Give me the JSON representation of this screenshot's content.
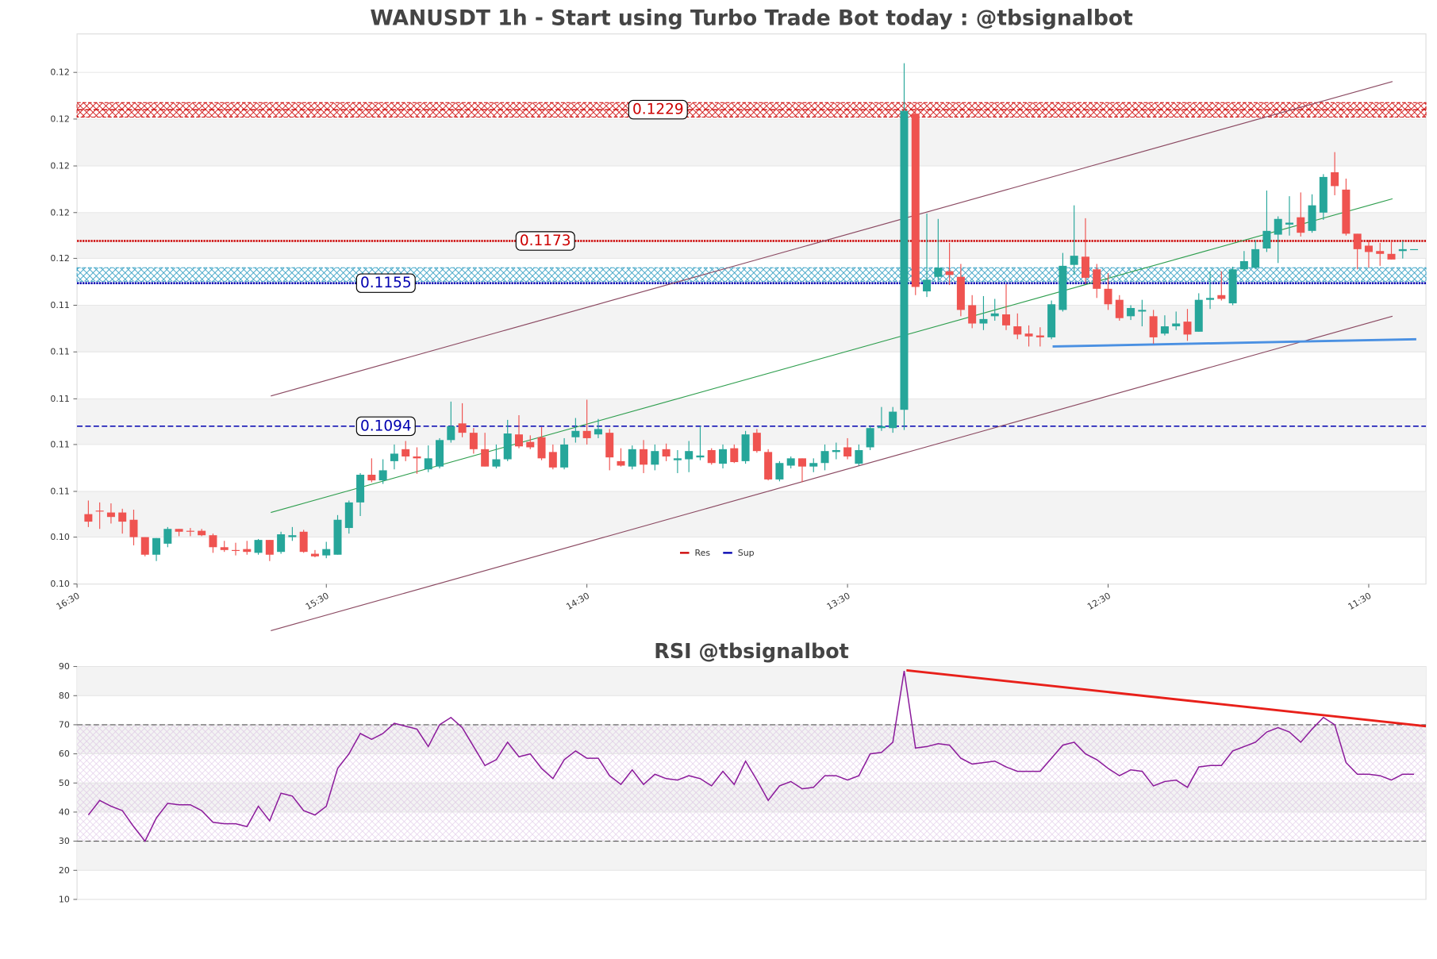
{
  "chart_data": [
    {
      "type": "candlestick",
      "title": "WANUSDT 1h - Start using Turbo Trade Bot today : @tbsignalbot",
      "up_color": "#26a69a",
      "down_color": "#ef5350",
      "open": [
        0.10565,
        0.1058,
        0.10572,
        0.10572,
        0.10541,
        0.10467,
        0.10392,
        0.10439,
        0.10502,
        0.10494,
        0.10494,
        0.10475,
        0.10424,
        0.10412,
        0.10416,
        0.104,
        0.10455,
        0.10404,
        0.10467,
        0.1049,
        0.10396,
        0.10389,
        0.10392,
        0.10506,
        0.10615,
        0.10733,
        0.10709,
        0.10791,
        0.10842,
        0.10811,
        0.10756,
        0.10768,
        0.10881,
        0.10952,
        0.10912,
        0.10842,
        0.10768,
        0.10799,
        0.10905,
        0.10873,
        0.10893,
        0.1083,
        0.10764,
        0.10893,
        0.1092,
        0.10905,
        0.10912,
        0.10791,
        0.10768,
        0.10842,
        0.10776,
        0.10842,
        0.10795,
        0.10799,
        0.10807,
        0.10838,
        0.1078,
        0.10846,
        0.10791,
        0.10912,
        0.1083,
        0.10713,
        0.10772,
        0.10803,
        0.10768,
        0.10783,
        0.1083,
        0.1085,
        0.1078,
        0.1085,
        0.10932,
        0.10932,
        0.1101,
        0.12273,
        0.11515,
        0.11577,
        0.11601,
        0.11577,
        0.11456,
        0.11378,
        0.11409,
        0.11417,
        0.11366,
        0.11335,
        0.11327,
        0.11319,
        0.11436,
        0.11628,
        0.11663,
        0.11609,
        0.11526,
        0.11479,
        0.11409,
        0.11429,
        0.11409,
        0.11335,
        0.11366,
        0.11386,
        0.11343,
        0.11479,
        0.11499,
        0.11464,
        0.11609,
        0.11616,
        0.11698,
        0.11757,
        0.118,
        0.11831,
        0.11773,
        0.11851,
        0.12023,
        0.11949,
        0.11761,
        0.1171,
        0.11687,
        0.11675,
        0.11687,
        0.11695
      ],
      "high": [
        0.10623,
        0.10615,
        0.10611,
        0.10588,
        0.10584,
        0.10467,
        0.10463,
        0.1051,
        0.10502,
        0.10506,
        0.10502,
        0.10482,
        0.10451,
        0.10443,
        0.10451,
        0.10459,
        0.10455,
        0.1049,
        0.1051,
        0.10498,
        0.10412,
        0.10447,
        0.10561,
        0.10623,
        0.1074,
        0.10803,
        0.10799,
        0.10862,
        0.10877,
        0.1085,
        0.10858,
        0.10889,
        0.11045,
        0.11038,
        0.10932,
        0.10912,
        0.10862,
        0.10967,
        0.10987,
        0.10901,
        0.10936,
        0.10862,
        0.10889,
        0.10975,
        0.11053,
        0.10971,
        0.10928,
        0.10846,
        0.10858,
        0.10881,
        0.10862,
        0.10866,
        0.10838,
        0.10877,
        0.1094,
        0.10846,
        0.10862,
        0.10862,
        0.1092,
        0.10928,
        0.10842,
        0.10791,
        0.10811,
        0.10803,
        0.10803,
        0.10862,
        0.1087,
        0.10889,
        0.10862,
        0.1094,
        0.11022,
        0.11022,
        0.12488,
        0.12312,
        0.11847,
        0.11824,
        0.11722,
        0.11632,
        0.11499,
        0.11495,
        0.11483,
        0.11546,
        0.11421,
        0.1137,
        0.11362,
        0.11476,
        0.11679,
        0.11882,
        0.11827,
        0.11632,
        0.11593,
        0.11499,
        0.11456,
        0.11479,
        0.11436,
        0.11413,
        0.11429,
        0.1144,
        0.11507,
        0.11601,
        0.11601,
        0.1162,
        0.11687,
        0.11734,
        0.11945,
        0.11835,
        0.11921,
        0.11937,
        0.11929,
        0.12015,
        0.12109,
        0.11996,
        0.11761,
        0.11734,
        0.11722,
        0.1173,
        0.1173,
        0.11695
      ],
      "low": [
        0.1051,
        0.10502,
        0.10525,
        0.10482,
        0.10432,
        0.10385,
        0.10365,
        0.10424,
        0.10471,
        0.10471,
        0.10471,
        0.104,
        0.10404,
        0.10389,
        0.10392,
        0.10392,
        0.10365,
        0.10396,
        0.10451,
        0.104,
        0.10381,
        0.10377,
        0.10392,
        0.10482,
        0.10557,
        0.10701,
        0.10694,
        0.10756,
        0.10791,
        0.10737,
        0.10744,
        0.1076,
        0.1087,
        0.10893,
        0.10823,
        0.10768,
        0.1076,
        0.10791,
        0.10846,
        0.10842,
        0.10795,
        0.10756,
        0.10756,
        0.1087,
        0.10862,
        0.10889,
        0.10752,
        0.10768,
        0.10756,
        0.1074,
        0.10752,
        0.10791,
        0.1074,
        0.10744,
        0.10795,
        0.10776,
        0.1076,
        0.10783,
        0.1078,
        0.10827,
        0.10709,
        0.10705,
        0.1076,
        0.10701,
        0.10744,
        0.10752,
        0.10799,
        0.10799,
        0.10772,
        0.10838,
        0.1092,
        0.10912,
        0.10924,
        0.11499,
        0.11491,
        0.11562,
        0.11542,
        0.11409,
        0.11358,
        0.1135,
        0.1139,
        0.1135,
        0.11311,
        0.1128,
        0.1128,
        0.11311,
        0.11429,
        0.11585,
        0.11546,
        0.11487,
        0.11436,
        0.1139,
        0.11393,
        0.11366,
        0.11292,
        0.11327,
        0.1135,
        0.11304,
        0.11343,
        0.1144,
        0.11476,
        0.11456,
        0.11601,
        0.11609,
        0.11683,
        0.11636,
        0.11753,
        0.11749,
        0.11765,
        0.1182,
        0.11925,
        0.11753,
        0.11609,
        0.11616,
        0.11624,
        0.11651,
        0.11655,
        0.11695
      ],
      "close": [
        0.10533,
        0.10576,
        0.10553,
        0.10533,
        0.10467,
        0.10392,
        0.10463,
        0.10502,
        0.1049,
        0.1049,
        0.10475,
        0.10424,
        0.10412,
        0.10408,
        0.10404,
        0.10455,
        0.10392,
        0.10479,
        0.10475,
        0.10404,
        0.10385,
        0.10416,
        0.10541,
        0.10615,
        0.10733,
        0.10709,
        0.10752,
        0.10823,
        0.10811,
        0.10803,
        0.10803,
        0.10881,
        0.1094,
        0.10912,
        0.10842,
        0.10768,
        0.10799,
        0.10909,
        0.10854,
        0.1085,
        0.10803,
        0.10764,
        0.10862,
        0.1092,
        0.10889,
        0.10928,
        0.10807,
        0.10772,
        0.10842,
        0.10776,
        0.10834,
        0.10811,
        0.10803,
        0.10834,
        0.10815,
        0.10783,
        0.10842,
        0.10787,
        0.10905,
        0.10834,
        0.10713,
        0.10783,
        0.10803,
        0.10768,
        0.10783,
        0.10834,
        0.10838,
        0.10811,
        0.10838,
        0.10932,
        0.1094,
        0.11002,
        0.12285,
        0.11534,
        0.11565,
        0.11616,
        0.11585,
        0.11436,
        0.11378,
        0.11397,
        0.11421,
        0.1137,
        0.11331,
        0.11323,
        0.11319,
        0.1146,
        0.11624,
        0.11667,
        0.11573,
        0.11526,
        0.1146,
        0.11401,
        0.11444,
        0.11436,
        0.11319,
        0.11366,
        0.11378,
        0.11331,
        0.11479,
        0.11487,
        0.11483,
        0.11609,
        0.11644,
        0.11695,
        0.11773,
        0.11824,
        0.11808,
        0.11765,
        0.11882,
        0.12003,
        0.11964,
        0.11761,
        0.11695,
        0.11683,
        0.11675,
        0.11651,
        0.11695,
        0.11695
      ],
      "xlim": [
        -1,
        118.05
      ],
      "ylim": [
        0.10267,
        0.12613
      ],
      "xticks": [
        {
          "value": -1,
          "label": "16:30"
        },
        {
          "value": 21,
          "label": "15:30"
        },
        {
          "value": 44,
          "label": "14:30"
        },
        {
          "value": 67,
          "label": "13:30"
        },
        {
          "value": 90,
          "label": "12:30"
        },
        {
          "value": 113,
          "label": "11:30"
        }
      ],
      "yticks": [
        {
          "value": 0.10267,
          "label": "0.10"
        },
        {
          "value": 0.10467,
          "label": "0.10"
        },
        {
          "value": 0.10662,
          "label": "0.11"
        },
        {
          "value": 0.10862,
          "label": "0.11"
        },
        {
          "value": 0.11057,
          "label": "0.11"
        },
        {
          "value": 0.11257,
          "label": "0.11"
        },
        {
          "value": 0.11456,
          "label": "0.11"
        },
        {
          "value": 0.11656,
          "label": "0.12"
        },
        {
          "value": 0.11851,
          "label": "0.12"
        },
        {
          "value": 0.1205,
          "label": "0.12"
        },
        {
          "value": 0.1225,
          "label": "0.12"
        },
        {
          "value": 0.12449,
          "label": "0.12"
        }
      ],
      "grid": true,
      "bands": true,
      "levels": [
        {
          "value": 0.1229,
          "color": "#cc0000",
          "style": "dashed",
          "zone": [
            0.12258,
            0.1232
          ]
        },
        {
          "value": 0.1173,
          "color": "#cc0000",
          "style": "dotted"
        },
        {
          "value": 0.1155,
          "color": "#0000b0",
          "style": "dotted",
          "zone": [
            0.11558,
            0.11616
          ],
          "zone_color": "#2a9ac0"
        },
        {
          "value": 0.1094,
          "color": "#0000b0",
          "style": "dashed"
        }
      ],
      "trendlines": [
        {
          "color": "#8b4a62",
          "x": [
            16.1,
            115.1
          ],
          "y": [
            0.11069,
            0.1241
          ]
        },
        {
          "color": "#8b4a62",
          "x": [
            16.1,
            115.1
          ],
          "y": [
            0.10068,
            0.11409
          ]
        },
        {
          "color": "#2e9e4e",
          "x": [
            16.1,
            115.1
          ],
          "y": [
            0.10572,
            0.1191
          ]
        },
        {
          "color": "#4a90e2",
          "x": [
            85.1,
            117.2
          ],
          "y": [
            0.1128,
            0.11311
          ],
          "width": 2.5
        }
      ],
      "legend": [
        {
          "name": "Res",
          "color": "#cc0000"
        },
        {
          "name": "Sup",
          "color": "#0000b0"
        }
      ],
      "legend_loc": "lower center"
    },
    {
      "type": "line",
      "title": "RSI @tbsignalbot",
      "color": "#8b1a9b",
      "values": [
        39,
        44,
        42,
        40.5,
        35,
        30,
        38,
        43,
        42.5,
        42.5,
        40.5,
        36.5,
        36,
        36,
        35,
        42,
        37,
        46.5,
        45.5,
        40.5,
        39,
        42,
        55,
        60,
        67,
        65,
        67,
        70.5,
        69.5,
        68.5,
        62.5,
        70,
        72.5,
        69,
        62.5,
        56,
        58,
        64,
        59,
        60,
        55,
        51.5,
        58,
        61,
        58.5,
        58.5,
        52.5,
        49.5,
        54.5,
        49.5,
        53,
        51.5,
        51,
        52.5,
        51.5,
        49,
        54,
        49.5,
        57.5,
        51,
        44,
        49,
        50.5,
        48,
        48.5,
        52.5,
        52.5,
        51,
        52.5,
        60,
        60.5,
        64,
        88.5,
        62,
        62.5,
        63.5,
        63,
        58.5,
        56.5,
        57,
        57.5,
        55.5,
        54,
        54,
        54,
        58.5,
        63,
        64,
        60,
        58,
        55,
        52.5,
        54.5,
        54,
        49,
        50.5,
        51,
        48.5,
        55.5,
        56,
        56,
        61,
        62.5,
        64,
        67.5,
        69,
        67.5,
        64,
        68.5,
        72.5,
        70,
        57,
        53,
        53,
        52.5,
        51,
        53,
        53
      ],
      "xlim": [
        -1,
        118.05
      ],
      "ylim": [
        10,
        90
      ],
      "yticks": [
        10,
        20,
        30,
        40,
        50,
        60,
        70,
        80,
        90
      ],
      "grid": true,
      "bands": true,
      "hlines": [
        70,
        30
      ],
      "hatch": [
        30,
        70
      ],
      "hatch_color": "#c9a0d6",
      "trendlines": [
        {
          "color": "#e8201a",
          "x": [
            72.2,
            118.05
          ],
          "y": [
            88.7,
            69.5
          ],
          "width": 2.5
        }
      ]
    }
  ]
}
